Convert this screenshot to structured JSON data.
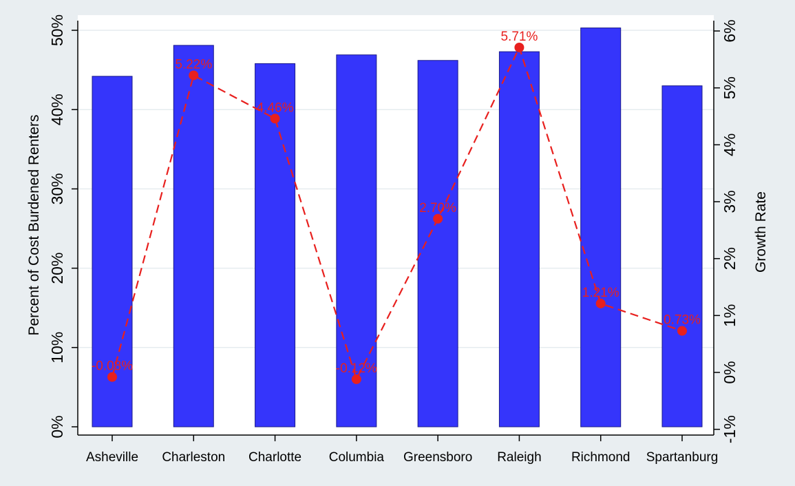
{
  "chart_data": {
    "type": "bar",
    "categories": [
      "Asheville",
      "Charleston",
      "Charlotte",
      "Columbia",
      "Greensboro",
      "Raleigh",
      "Richmond",
      "Spartanburg"
    ],
    "series": [
      {
        "type": "bar",
        "axis": "left",
        "values": [
          44.2,
          48.1,
          45.8,
          46.9,
          46.2,
          47.3,
          50.3,
          43.0
        ]
      },
      {
        "type": "line",
        "axis": "right",
        "values": [
          -0.08,
          5.22,
          4.46,
          -0.12,
          2.7,
          5.71,
          1.21,
          0.73
        ],
        "labels": [
          "-0.08%",
          "5.22%",
          "4.46%",
          "-0.12%",
          "2.70%",
          "5.71%",
          "1.21%",
          "0.73%"
        ]
      }
    ],
    "ylabel": "Percent of Cost Burdened Renters",
    "y2label": "Growth Rate",
    "ylim": [
      0,
      51
    ],
    "y2lim": [
      -1.08,
      6.2
    ],
    "yticks": [
      0,
      10,
      20,
      30,
      40,
      50
    ],
    "ytick_labels": [
      "0%",
      "10%",
      "20%",
      "30%",
      "40%",
      "50%"
    ],
    "y2ticks": [
      -1,
      0,
      1,
      2,
      3,
      4,
      5,
      6
    ],
    "y2tick_labels": [
      "-1%",
      "0%",
      "1%",
      "2%",
      "3%",
      "4%",
      "5%",
      "6%"
    ],
    "grid": true,
    "colors": {
      "background": "#e9eef1",
      "plot_background": "#ffffff",
      "bar": "#3535fb",
      "bar_outline": "#1a1a8a",
      "line": "#e8201e",
      "grid": "#e6ecef",
      "axis": "#000000"
    }
  }
}
